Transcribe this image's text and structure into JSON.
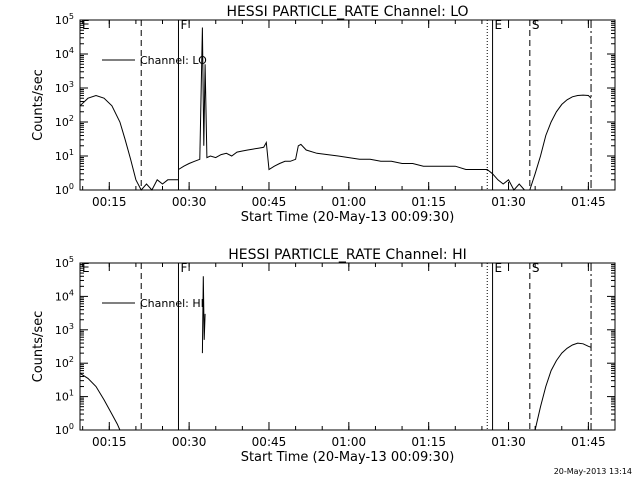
{
  "footer_stamp": "20-May-2013 13:14",
  "chart_data": [
    {
      "type": "line",
      "title": "HESSI PARTICLE_RATE Channel: LO",
      "xlabel": "Start Time (20-May-13 00:09:30)",
      "ylabel": "Counts/sec",
      "y_scale": "log",
      "xlim": [
        "00:09:30",
        "01:50:00"
      ],
      "ylim": [
        1,
        100000
      ],
      "x_tick_labels": [
        "00:15",
        "00:30",
        "00:45",
        "01:00",
        "01:15",
        "01:30",
        "01:45"
      ],
      "y_tick_labels": [
        {
          "base": "10",
          "exp": "0"
        },
        {
          "base": "10",
          "exp": "1"
        },
        {
          "base": "10",
          "exp": "2"
        },
        {
          "base": "10",
          "exp": "3"
        },
        {
          "base": "10",
          "exp": "4"
        },
        {
          "base": "10",
          "exp": "5"
        }
      ],
      "legend": {
        "placement": "top-left",
        "label": "Channel: LO"
      },
      "markers": [
        {
          "label": "E",
          "time": "00:09:30",
          "style": "dashed"
        },
        {
          "label": "",
          "time": "00:21:00",
          "style": "dashed"
        },
        {
          "label": "F",
          "time": "00:28:00",
          "style": "solid"
        },
        {
          "label": "",
          "time": "01:26:00",
          "style": "dotted"
        },
        {
          "label": "E",
          "time": "01:27:00",
          "style": "solid"
        },
        {
          "label": "S",
          "time": "01:34:00",
          "style": "dashed"
        },
        {
          "label": "",
          "time": "01:45:30",
          "style": "dashdot"
        }
      ],
      "series": [
        {
          "name": "Channel: LO",
          "segments": [
            [
              [
                "00:09:30",
                300
              ],
              [
                "00:11:00",
                500
              ],
              [
                "00:12:30",
                600
              ],
              [
                "00:14:00",
                500
              ],
              [
                "00:15:30",
                300
              ],
              [
                "00:17:00",
                100
              ],
              [
                "00:18:00",
                30
              ],
              [
                "00:19:00",
                8
              ],
              [
                "00:20:00",
                2
              ],
              [
                "00:21:00",
                1
              ],
              [
                "00:22:00",
                1.5
              ],
              [
                "00:23:00",
                1
              ],
              [
                "00:24:00",
                2
              ],
              [
                "00:25:00",
                1.5
              ],
              [
                "00:26:00",
                2
              ],
              [
                "00:27:00",
                2
              ],
              [
                "00:28:00",
                2
              ]
            ],
            [
              [
                "00:28:00",
                4
              ],
              [
                "00:29:00",
                5
              ],
              [
                "00:30:00",
                6
              ],
              [
                "00:31:00",
                7
              ],
              [
                "00:32:00",
                8
              ],
              [
                "00:32:30",
                60000
              ],
              [
                "00:32:45",
                20
              ],
              [
                "00:33:00",
                5000
              ],
              [
                "00:33:20",
                9
              ],
              [
                "00:34:00",
                10
              ],
              [
                "00:35:00",
                9
              ],
              [
                "00:36:00",
                11
              ],
              [
                "00:37:00",
                12
              ],
              [
                "00:38:00",
                10
              ],
              [
                "00:39:00",
                13
              ],
              [
                "00:40:00",
                14
              ],
              [
                "00:41:00",
                15
              ],
              [
                "00:42:00",
                16
              ],
              [
                "00:43:00",
                17
              ],
              [
                "00:44:00",
                18
              ],
              [
                "00:44:30",
                25
              ],
              [
                "00:45:00",
                4
              ],
              [
                "00:46:00",
                5
              ],
              [
                "00:47:00",
                6
              ],
              [
                "00:48:00",
                7
              ],
              [
                "00:49:00",
                7
              ],
              [
                "00:50:00",
                8
              ],
              [
                "00:50:30",
                20
              ],
              [
                "00:51:00",
                22
              ],
              [
                "00:52:00",
                15
              ],
              [
                "00:54:00",
                12
              ],
              [
                "00:56:00",
                11
              ],
              [
                "00:58:00",
                10
              ],
              [
                "01:00:00",
                9
              ],
              [
                "01:02:00",
                8
              ],
              [
                "01:04:00",
                8
              ],
              [
                "01:06:00",
                7
              ],
              [
                "01:08:00",
                7
              ],
              [
                "01:10:00",
                6
              ],
              [
                "01:12:00",
                6
              ],
              [
                "01:14:00",
                5
              ],
              [
                "01:16:00",
                5
              ],
              [
                "01:18:00",
                5
              ],
              [
                "01:20:00",
                5
              ],
              [
                "01:22:00",
                4
              ],
              [
                "01:24:00",
                4
              ],
              [
                "01:26:00",
                4
              ],
              [
                "01:27:00",
                3
              ]
            ],
            [
              [
                "01:27:00",
                3
              ],
              [
                "01:28:00",
                2
              ],
              [
                "01:29:00",
                1.5
              ],
              [
                "01:30:00",
                2
              ],
              [
                "01:31:00",
                1
              ],
              [
                "01:32:00",
                1.5
              ],
              [
                "01:33:00",
                1
              ]
            ],
            [
              [
                "01:34:00",
                1
              ],
              [
                "01:35:00",
                3
              ],
              [
                "01:36:00",
                10
              ],
              [
                "01:37:00",
                40
              ],
              [
                "01:38:00",
                100
              ],
              [
                "01:39:00",
                200
              ],
              [
                "01:40:00",
                330
              ],
              [
                "01:41:00",
                450
              ],
              [
                "01:42:00",
                550
              ],
              [
                "01:43:00",
                600
              ],
              [
                "01:44:00",
                620
              ],
              [
                "01:45:00",
                600
              ],
              [
                "01:45:30",
                500
              ]
            ]
          ]
        }
      ]
    },
    {
      "type": "line",
      "title": "HESSI PARTICLE_RATE Channel: HI",
      "xlabel": "Start Time (20-May-13 00:09:30)",
      "ylabel": "Counts/sec",
      "y_scale": "log",
      "xlim": [
        "00:09:30",
        "01:50:00"
      ],
      "ylim": [
        1,
        100000
      ],
      "x_tick_labels": [
        "00:15",
        "00:30",
        "00:45",
        "01:00",
        "01:15",
        "01:30",
        "01:45"
      ],
      "y_tick_labels": [
        {
          "base": "10",
          "exp": "0"
        },
        {
          "base": "10",
          "exp": "1"
        },
        {
          "base": "10",
          "exp": "2"
        },
        {
          "base": "10",
          "exp": "3"
        },
        {
          "base": "10",
          "exp": "4"
        },
        {
          "base": "10",
          "exp": "5"
        }
      ],
      "legend": {
        "placement": "top-left",
        "label": "Channel: HI"
      },
      "markers": [
        {
          "label": "E",
          "time": "00:09:30",
          "style": "dashed"
        },
        {
          "label": "",
          "time": "00:21:00",
          "style": "dashed"
        },
        {
          "label": "F",
          "time": "00:28:00",
          "style": "solid"
        },
        {
          "label": "",
          "time": "01:26:00",
          "style": "dotted"
        },
        {
          "label": "E",
          "time": "01:27:00",
          "style": "solid"
        },
        {
          "label": "S",
          "time": "01:34:00",
          "style": "dashed"
        },
        {
          "label": "",
          "time": "01:45:30",
          "style": "dashdot"
        }
      ],
      "series": [
        {
          "name": "Channel: HI",
          "segments": [
            [
              [
                "00:09:30",
                50
              ],
              [
                "00:11:00",
                35
              ],
              [
                "00:12:30",
                20
              ],
              [
                "00:14:00",
                8
              ],
              [
                "00:15:30",
                3
              ],
              [
                "00:16:30",
                1.5
              ],
              [
                "00:17:00",
                1
              ]
            ],
            [
              [
                "00:32:30",
                200
              ],
              [
                "00:32:40",
                40000
              ],
              [
                "00:32:50",
                500
              ],
              [
                "00:33:00",
                3000
              ]
            ],
            [
              [
                "01:35:00",
                1
              ],
              [
                "01:36:00",
                5
              ],
              [
                "01:37:00",
                20
              ],
              [
                "01:38:00",
                60
              ],
              [
                "01:39:00",
                120
              ],
              [
                "01:40:00",
                200
              ],
              [
                "01:41:00",
                280
              ],
              [
                "01:42:00",
                350
              ],
              [
                "01:43:00",
                400
              ],
              [
                "01:44:00",
                380
              ],
              [
                "01:45:00",
                320
              ],
              [
                "01:45:30",
                300
              ]
            ]
          ]
        }
      ]
    }
  ]
}
